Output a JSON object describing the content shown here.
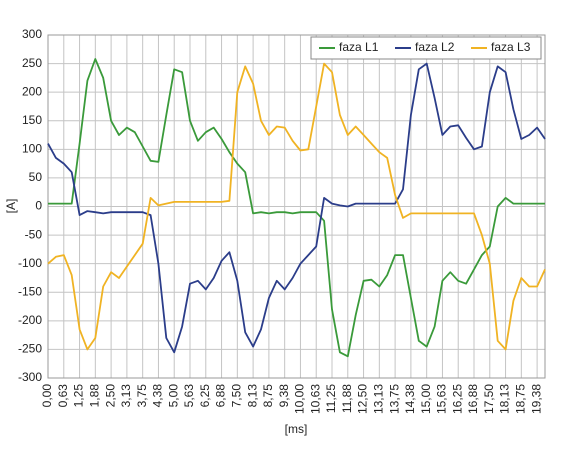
{
  "chart_data": {
    "type": "line",
    "x_label": "[ms]",
    "y_label": "[A]",
    "x": [
      0,
      0.3125,
      0.625,
      0.9375,
      1.25,
      1.5625,
      1.875,
      2.1875,
      2.5,
      2.8125,
      3.125,
      3.4375,
      3.75,
      4.0625,
      4.375,
      4.6875,
      5,
      5.3125,
      5.625,
      5.9375,
      6.25,
      6.5625,
      6.875,
      7.1875,
      7.5,
      7.8125,
      8.125,
      8.4375,
      8.75,
      9.0625,
      9.375,
      9.6875,
      10,
      10.3125,
      10.625,
      10.9375,
      11.25,
      11.5625,
      11.875,
      12.1875,
      12.5,
      12.8125,
      13.125,
      13.4375,
      13.75,
      14.0625,
      14.375,
      14.6875,
      15,
      15.3125,
      15.625,
      15.9375,
      16.25,
      16.5625,
      16.875,
      17.1875,
      17.5,
      17.8125,
      18.125,
      18.4375,
      18.75,
      19.0625,
      19.375,
      19.6875
    ],
    "series": [
      {
        "name": "faza L1",
        "color": "#3a9a3a",
        "values": [
          5,
          5,
          5,
          5,
          110,
          220,
          258,
          225,
          150,
          125,
          138,
          130,
          105,
          80,
          78,
          160,
          240,
          235,
          150,
          115,
          130,
          138,
          118,
          95,
          75,
          60,
          -12,
          -10,
          -12,
          -10,
          -10,
          -12,
          -10,
          -10,
          -10,
          -25,
          -180,
          -255,
          -262,
          -190,
          -130,
          -128,
          -140,
          -120,
          -85,
          -85,
          -160,
          -235,
          -245,
          -210,
          -130,
          -115,
          -130,
          -135,
          -110,
          -85,
          -70,
          0,
          15,
          5,
          5,
          5,
          5,
          5
        ]
      },
      {
        "name": "faza L2",
        "color": "#2b3d8a",
        "values": [
          110,
          85,
          75,
          60,
          -15,
          -8,
          -10,
          -12,
          -10,
          -10,
          -10,
          -10,
          -10,
          -15,
          -100,
          -230,
          -255,
          -210,
          -135,
          -130,
          -145,
          -125,
          -95,
          -80,
          -130,
          -220,
          -245,
          -215,
          -160,
          -130,
          -145,
          -125,
          -100,
          -85,
          -70,
          15,
          5,
          2,
          0,
          5,
          5,
          5,
          5,
          5,
          5,
          30,
          160,
          240,
          250,
          190,
          125,
          140,
          142,
          120,
          100,
          105,
          200,
          245,
          235,
          170,
          118,
          125,
          138,
          118
        ]
      },
      {
        "name": "faza L3",
        "color": "#f0b323",
        "values": [
          -100,
          -88,
          -85,
          -120,
          -215,
          -250,
          -230,
          -140,
          -115,
          -125,
          -105,
          -85,
          -65,
          15,
          2,
          5,
          8,
          8,
          8,
          8,
          8,
          8,
          8,
          10,
          200,
          245,
          215,
          150,
          125,
          140,
          138,
          115,
          98,
          100,
          175,
          250,
          235,
          160,
          125,
          140,
          125,
          110,
          95,
          85,
          20,
          -20,
          -12,
          -12,
          -12,
          -12,
          -12,
          -12,
          -12,
          -12,
          -12,
          -50,
          -100,
          -235,
          -250,
          -165,
          -125,
          -140,
          -140,
          -110
        ]
      }
    ],
    "xlim": [
      0,
      19.6875
    ],
    "xticks": [
      {
        "value": 0,
        "label": "0,00"
      },
      {
        "value": 0.625,
        "label": "0,63"
      },
      {
        "value": 1.25,
        "label": "1,25"
      },
      {
        "value": 1.875,
        "label": "1,88"
      },
      {
        "value": 2.5,
        "label": "2,50"
      },
      {
        "value": 3.125,
        "label": "3,13"
      },
      {
        "value": 3.75,
        "label": "3,75"
      },
      {
        "value": 4.375,
        "label": "4,38"
      },
      {
        "value": 5,
        "label": "5,00"
      },
      {
        "value": 5.625,
        "label": "5,63"
      },
      {
        "value": 6.25,
        "label": "6,25"
      },
      {
        "value": 6.875,
        "label": "6,88"
      },
      {
        "value": 7.5,
        "label": "7,50"
      },
      {
        "value": 8.125,
        "label": "8,13"
      },
      {
        "value": 8.75,
        "label": "8,75"
      },
      {
        "value": 9.375,
        "label": "9,38"
      },
      {
        "value": 10,
        "label": "10,00"
      },
      {
        "value": 10.625,
        "label": "10,63"
      },
      {
        "value": 11.25,
        "label": "11,25"
      },
      {
        "value": 11.875,
        "label": "11,88"
      },
      {
        "value": 12.5,
        "label": "12,50"
      },
      {
        "value": 13.125,
        "label": "13,13"
      },
      {
        "value": 13.75,
        "label": "13,75"
      },
      {
        "value": 14.375,
        "label": "14,38"
      },
      {
        "value": 15,
        "label": "15,00"
      },
      {
        "value": 15.625,
        "label": "15,63"
      },
      {
        "value": 16.25,
        "label": "16,25"
      },
      {
        "value": 16.875,
        "label": "16,88"
      },
      {
        "value": 17.5,
        "label": "17,50"
      },
      {
        "value": 18.125,
        "label": "18,13"
      },
      {
        "value": 18.75,
        "label": "18,75"
      },
      {
        "value": 19.375,
        "label": "19,38"
      }
    ],
    "ylim": [
      -300,
      300
    ],
    "yticks": [
      -300,
      -250,
      -200,
      -150,
      -100,
      -50,
      0,
      50,
      100,
      150,
      200,
      250,
      300
    ],
    "grid": true,
    "legend": "upper right"
  }
}
